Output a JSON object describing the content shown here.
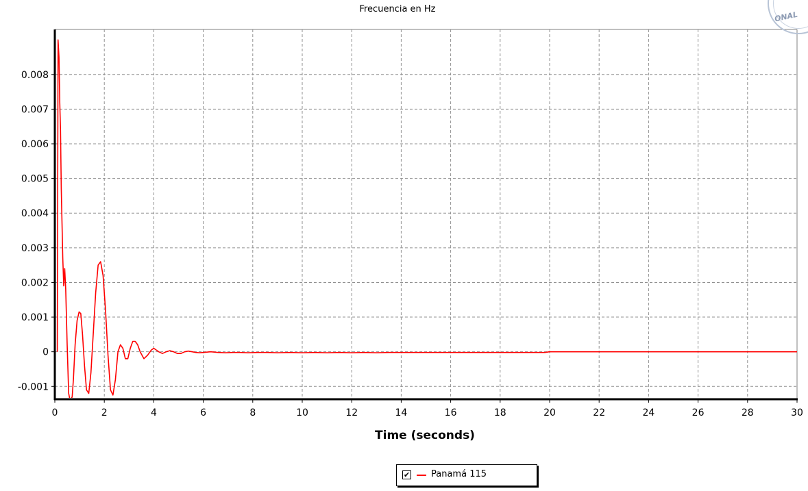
{
  "chart_data": {
    "type": "line",
    "title": "Frecuencia en Hz",
    "xlabel": "Time (seconds)",
    "ylabel": "",
    "xlim": [
      0,
      30
    ],
    "ylim": [
      -0.00137,
      0.0093
    ],
    "grid": true,
    "legend_position": "bottom-center",
    "x_ticks": [
      "0",
      "2",
      "4",
      "6",
      "8",
      "10",
      "12",
      "14",
      "16",
      "18",
      "20",
      "22",
      "24",
      "26",
      "28",
      "30"
    ],
    "y_ticks": [
      "-0.001",
      "0",
      "0.001",
      "0.002",
      "0.003",
      "0.004",
      "0.005",
      "0.006",
      "0.007",
      "0.008"
    ],
    "series": [
      {
        "name": "Panamá 115",
        "color": "#ff0000",
        "x": [
          0.1,
          0.13,
          0.17,
          0.2,
          0.23,
          0.26,
          0.29,
          0.32,
          0.36,
          0.4,
          0.44,
          0.5,
          0.56,
          0.6,
          0.65,
          0.7,
          0.75,
          0.82,
          0.9,
          0.98,
          1.05,
          1.12,
          1.2,
          1.28,
          1.37,
          1.46,
          1.55,
          1.65,
          1.75,
          1.85,
          1.95,
          2.05,
          2.15,
          2.25,
          2.35,
          2.45,
          2.55,
          2.65,
          2.75,
          2.85,
          2.95,
          3.05,
          3.15,
          3.25,
          3.35,
          3.45,
          3.6,
          3.75,
          3.9,
          4.0,
          4.1,
          4.2,
          4.35,
          4.5,
          4.65,
          4.8,
          4.95,
          5.1,
          5.25,
          5.4,
          5.55,
          5.7,
          5.85,
          6.0,
          6.3,
          6.6,
          6.9,
          7.2,
          7.5,
          7.8,
          8.2,
          8.6,
          9.0,
          9.5,
          10.0,
          10.5,
          11.0,
          11.5,
          12.0,
          12.5,
          13.0,
          13.5,
          14.0,
          15.0,
          16.0,
          17.0,
          18.0,
          19.0,
          19.8,
          20.0,
          22.0,
          25.0,
          30.0
        ],
        "y": [
          0,
          0.009,
          0.0085,
          0.0072,
          0.0064,
          0.0047,
          0.0037,
          0.0027,
          0.0019,
          0.0024,
          0.0018,
          0.0002,
          -0.0012,
          -0.00135,
          -0.00138,
          -0.0013,
          -0.0008,
          0.0002,
          0.0009,
          0.00115,
          0.0011,
          0.0005,
          -0.0004,
          -0.0011,
          -0.0012,
          -0.0006,
          0.0005,
          0.0017,
          0.0025,
          0.0026,
          0.0022,
          0.0012,
          -0.0001,
          -0.0011,
          -0.00125,
          -0.0008,
          0,
          0.0002,
          0.0001,
          -0.0002,
          -0.0002,
          0.0001,
          0.0003,
          0.0003,
          0.0002,
          0,
          -0.0002,
          -0.0001,
          5e-05,
          0.0001,
          5e-05,
          0,
          -5e-05,
          0,
          3e-05,
          0,
          -5e-05,
          -5e-05,
          0,
          2e-05,
          0,
          -2e-05,
          -3e-05,
          -2e-05,
          0,
          -2e-05,
          -3e-05,
          -2e-05,
          -2e-05,
          -3e-05,
          -2e-05,
          -2e-05,
          -3e-05,
          -2e-05,
          -3e-05,
          -2e-05,
          -3e-05,
          -2e-05,
          -3e-05,
          -2e-05,
          -3e-05,
          -2e-05,
          -2e-05,
          -2e-05,
          -2e-05,
          -2e-05,
          -2e-05,
          -2e-05,
          -2e-05,
          0,
          0,
          0,
          0
        ]
      }
    ]
  },
  "legend": {
    "checked": true,
    "checkmark": "✔",
    "label": "Panamá 115"
  },
  "stamp": {
    "text": "ONAL"
  }
}
